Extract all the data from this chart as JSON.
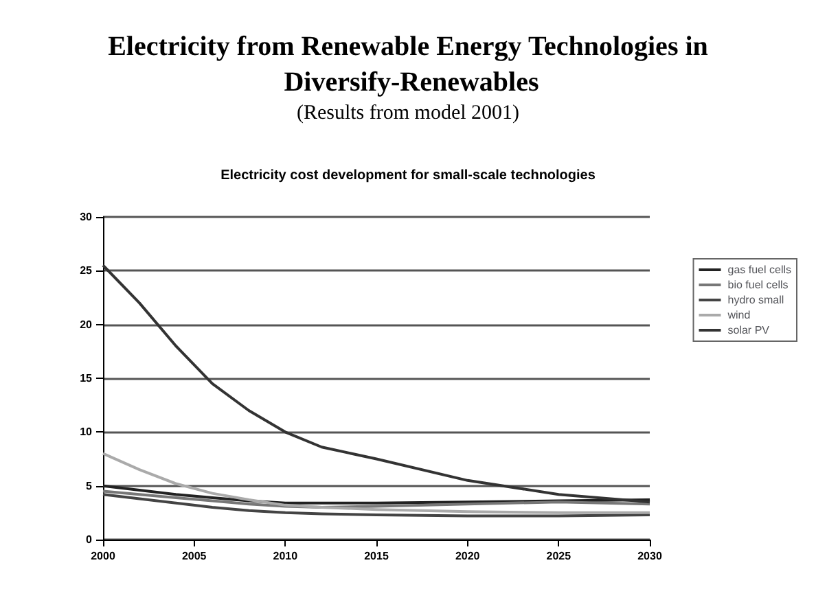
{
  "chart_data": {
    "type": "line",
    "title": "Electricity from Renewable Energy Technologies in Diversify-Renewables",
    "subtitle": "(Results from model 2001)",
    "annotations": [
      "Electricity cost development for small-scale technologies"
    ],
    "x": [
      2000,
      2002,
      2004,
      2006,
      2008,
      2010,
      2012,
      2015,
      2020,
      2025,
      2030
    ],
    "xlim": [
      2000,
      2030
    ],
    "xticks": [
      2000,
      2005,
      2010,
      2015,
      2020,
      2025,
      2030
    ],
    "ylim": [
      0,
      30
    ],
    "yticks": [
      0,
      5,
      10,
      15,
      20,
      25,
      30
    ],
    "grid": "y",
    "legend": "right",
    "marker": "none",
    "series": [
      {
        "name": "gas fuel cells",
        "color": "#222222",
        "values": [
          5,
          4.6,
          4.2,
          3.9,
          3.6,
          3.4,
          3.4,
          3.4,
          3.5,
          3.6,
          3.7
        ]
      },
      {
        "name": "bio fuel cells",
        "color": "#777777",
        "values": [
          4.5,
          4.2,
          3.9,
          3.6,
          3.3,
          3.1,
          3.0,
          3.1,
          3.3,
          3.5,
          3.3
        ]
      },
      {
        "name": "hydro small",
        "color": "#444444",
        "values": [
          4.2,
          3.8,
          3.4,
          3.0,
          2.7,
          2.5,
          2.4,
          2.3,
          2.2,
          2.2,
          2.3
        ]
      },
      {
        "name": "wind",
        "color": "#aaaaaa",
        "values": [
          8,
          6.5,
          5.2,
          4.3,
          3.7,
          3.2,
          3.0,
          2.8,
          2.6,
          2.5,
          2.5
        ]
      },
      {
        "name": "solar PV",
        "color": "#333333",
        "values": [
          25.5,
          22,
          18,
          14.5,
          12,
          10,
          8.6,
          7.5,
          5.5,
          4.2,
          3.5
        ]
      }
    ]
  }
}
